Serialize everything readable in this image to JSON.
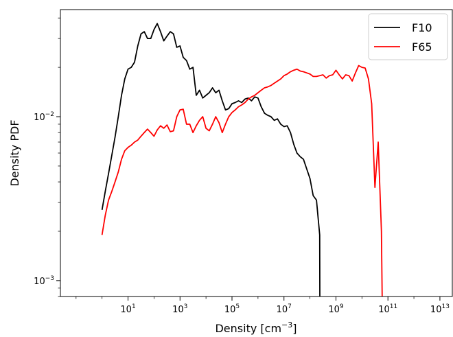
{
  "chart_data": {
    "type": "line",
    "xlabel": "Density [cm",
    "xlabel_unit_exponent": "−3",
    "xlabel_close": "]",
    "ylabel": "Density PDF",
    "xscale": "log",
    "yscale": "log",
    "xlim": [
      0.025,
      30000000000000
    ],
    "ylim": [
      0.0008,
      0.045
    ],
    "grid": false,
    "legend_position": "top-right",
    "x_ticks": [
      {
        "base": "10",
        "exp": "1",
        "value": 10
      },
      {
        "base": "10",
        "exp": "3",
        "value": 1000
      },
      {
        "base": "10",
        "exp": "5",
        "value": 100000
      },
      {
        "base": "10",
        "exp": "7",
        "value": 10000000
      },
      {
        "base": "10",
        "exp": "9",
        "value": 1000000000
      },
      {
        "base": "10",
        "exp": "11",
        "value": 100000000000
      },
      {
        "base": "10",
        "exp": "13",
        "value": 10000000000000
      }
    ],
    "y_ticks": [
      {
        "base": "10",
        "exp": "−2",
        "value": 0.01
      },
      {
        "base": "10",
        "exp": "−3",
        "value": 0.001
      }
    ],
    "series": [
      {
        "name": "F10",
        "color": "#000000",
        "points": [
          [
            1.0,
            0.0027
          ],
          [
            1.33,
            0.0035
          ],
          [
            1.78,
            0.0045
          ],
          [
            2.37,
            0.0058
          ],
          [
            3.16,
            0.0075
          ],
          [
            4.22,
            0.01
          ],
          [
            5.62,
            0.0135
          ],
          [
            7.5,
            0.017
          ],
          [
            10.0,
            0.0195
          ],
          [
            13.3,
            0.02
          ],
          [
            17.8,
            0.0215
          ],
          [
            23.7,
            0.027
          ],
          [
            31.6,
            0.032
          ],
          [
            42.2,
            0.033
          ],
          [
            56.2,
            0.03
          ],
          [
            75.0,
            0.03
          ],
          [
            100,
            0.034
          ],
          [
            133,
            0.037
          ],
          [
            178,
            0.033
          ],
          [
            237,
            0.029
          ],
          [
            316,
            0.031
          ],
          [
            422,
            0.033
          ],
          [
            562,
            0.032
          ],
          [
            750,
            0.0265
          ],
          [
            1000,
            0.027
          ],
          [
            1330,
            0.023
          ],
          [
            1780,
            0.022
          ],
          [
            2370,
            0.0195
          ],
          [
            3160,
            0.02
          ],
          [
            4220,
            0.0135
          ],
          [
            5620,
            0.0145
          ],
          [
            7500,
            0.013
          ],
          [
            10000,
            0.0135
          ],
          [
            13300,
            0.014
          ],
          [
            17800,
            0.015
          ],
          [
            23700,
            0.014
          ],
          [
            31600,
            0.0145
          ],
          [
            42200,
            0.0125
          ],
          [
            56200,
            0.011
          ],
          [
            75000,
            0.0112
          ],
          [
            100000,
            0.012
          ],
          [
            133000,
            0.0122
          ],
          [
            178000,
            0.0125
          ],
          [
            237000,
            0.0122
          ],
          [
            316000,
            0.0128
          ],
          [
            422000,
            0.013
          ],
          [
            562000,
            0.0125
          ],
          [
            750000,
            0.0132
          ],
          [
            1000000,
            0.013
          ],
          [
            1330000,
            0.0115
          ],
          [
            1780000,
            0.0105
          ],
          [
            2370000,
            0.0102
          ],
          [
            3160000,
            0.01
          ],
          [
            4220000,
            0.0095
          ],
          [
            5620000,
            0.0097
          ],
          [
            7500000,
            0.009
          ],
          [
            10000000,
            0.0087
          ],
          [
            13300000,
            0.0088
          ],
          [
            17800000,
            0.008
          ],
          [
            23700000,
            0.0068
          ],
          [
            31600000,
            0.006
          ],
          [
            42200000,
            0.0057
          ],
          [
            56200000,
            0.0055
          ],
          [
            75000000,
            0.0048
          ],
          [
            100000000,
            0.0042
          ],
          [
            133000000,
            0.0033
          ],
          [
            178000000,
            0.0031
          ],
          [
            237000000,
            0.0019
          ],
          [
            240000000,
            0.0008
          ]
        ]
      },
      {
        "name": "F65",
        "color": "#ff0000",
        "points": [
          [
            1.0,
            0.0019
          ],
          [
            1.33,
            0.0025
          ],
          [
            1.78,
            0.0031
          ],
          [
            2.37,
            0.0035
          ],
          [
            3.16,
            0.004
          ],
          [
            4.22,
            0.0046
          ],
          [
            5.62,
            0.0055
          ],
          [
            7.5,
            0.0062
          ],
          [
            10.0,
            0.0065
          ],
          [
            13.3,
            0.0067
          ],
          [
            17.8,
            0.007
          ],
          [
            23.7,
            0.0072
          ],
          [
            31.6,
            0.0076
          ],
          [
            42.2,
            0.008
          ],
          [
            56.2,
            0.0084
          ],
          [
            75.0,
            0.008
          ],
          [
            100,
            0.0076
          ],
          [
            133,
            0.0083
          ],
          [
            178,
            0.0088
          ],
          [
            237,
            0.0085
          ],
          [
            316,
            0.0089
          ],
          [
            422,
            0.0081
          ],
          [
            562,
            0.0082
          ],
          [
            750,
            0.01
          ],
          [
            1000,
            0.011
          ],
          [
            1330,
            0.0111
          ],
          [
            1780,
            0.009
          ],
          [
            2370,
            0.009
          ],
          [
            3160,
            0.008
          ],
          [
            4220,
            0.0088
          ],
          [
            5620,
            0.0095
          ],
          [
            7500,
            0.01
          ],
          [
            10000,
            0.0085
          ],
          [
            13300,
            0.0082
          ],
          [
            17800,
            0.009
          ],
          [
            23700,
            0.01
          ],
          [
            31600,
            0.0092
          ],
          [
            42200,
            0.008
          ],
          [
            56200,
            0.009
          ],
          [
            75000,
            0.01
          ],
          [
            100000,
            0.0106
          ],
          [
            133000,
            0.011
          ],
          [
            178000,
            0.0115
          ],
          [
            237000,
            0.0118
          ],
          [
            316000,
            0.0122
          ],
          [
            422000,
            0.0128
          ],
          [
            562000,
            0.0132
          ],
          [
            750000,
            0.0135
          ],
          [
            1000000,
            0.014
          ],
          [
            1330000,
            0.0145
          ],
          [
            1780000,
            0.015
          ],
          [
            2370000,
            0.0152
          ],
          [
            3160000,
            0.0155
          ],
          [
            4220000,
            0.016
          ],
          [
            5620000,
            0.0165
          ],
          [
            7500000,
            0.017
          ],
          [
            10000000,
            0.0178
          ],
          [
            13300000,
            0.0182
          ],
          [
            17800000,
            0.0188
          ],
          [
            23700000,
            0.0192
          ],
          [
            31600000,
            0.0195
          ],
          [
            42200000,
            0.019
          ],
          [
            56200000,
            0.0188
          ],
          [
            75000000,
            0.0185
          ],
          [
            100000000,
            0.0182
          ],
          [
            133000000,
            0.0176
          ],
          [
            178000000,
            0.0176
          ],
          [
            237000000,
            0.0178
          ],
          [
            316000000,
            0.018
          ],
          [
            422000000,
            0.0172
          ],
          [
            562000000,
            0.0178
          ],
          [
            750000000,
            0.018
          ],
          [
            1000000000,
            0.0192
          ],
          [
            1330000000,
            0.018
          ],
          [
            1780000000,
            0.017
          ],
          [
            2370000000,
            0.018
          ],
          [
            3160000000,
            0.0178
          ],
          [
            4220000000,
            0.0165
          ],
          [
            5620000000,
            0.0185
          ],
          [
            7500000000,
            0.0205
          ],
          [
            10000000000,
            0.02
          ],
          [
            13300000000,
            0.0198
          ],
          [
            17800000000,
            0.017
          ],
          [
            23700000000,
            0.012
          ],
          [
            31600000000,
            0.0037
          ],
          [
            42200000000,
            0.007
          ],
          [
            56200000000,
            0.002
          ],
          [
            60000000000,
            0.0008
          ]
        ]
      }
    ]
  }
}
